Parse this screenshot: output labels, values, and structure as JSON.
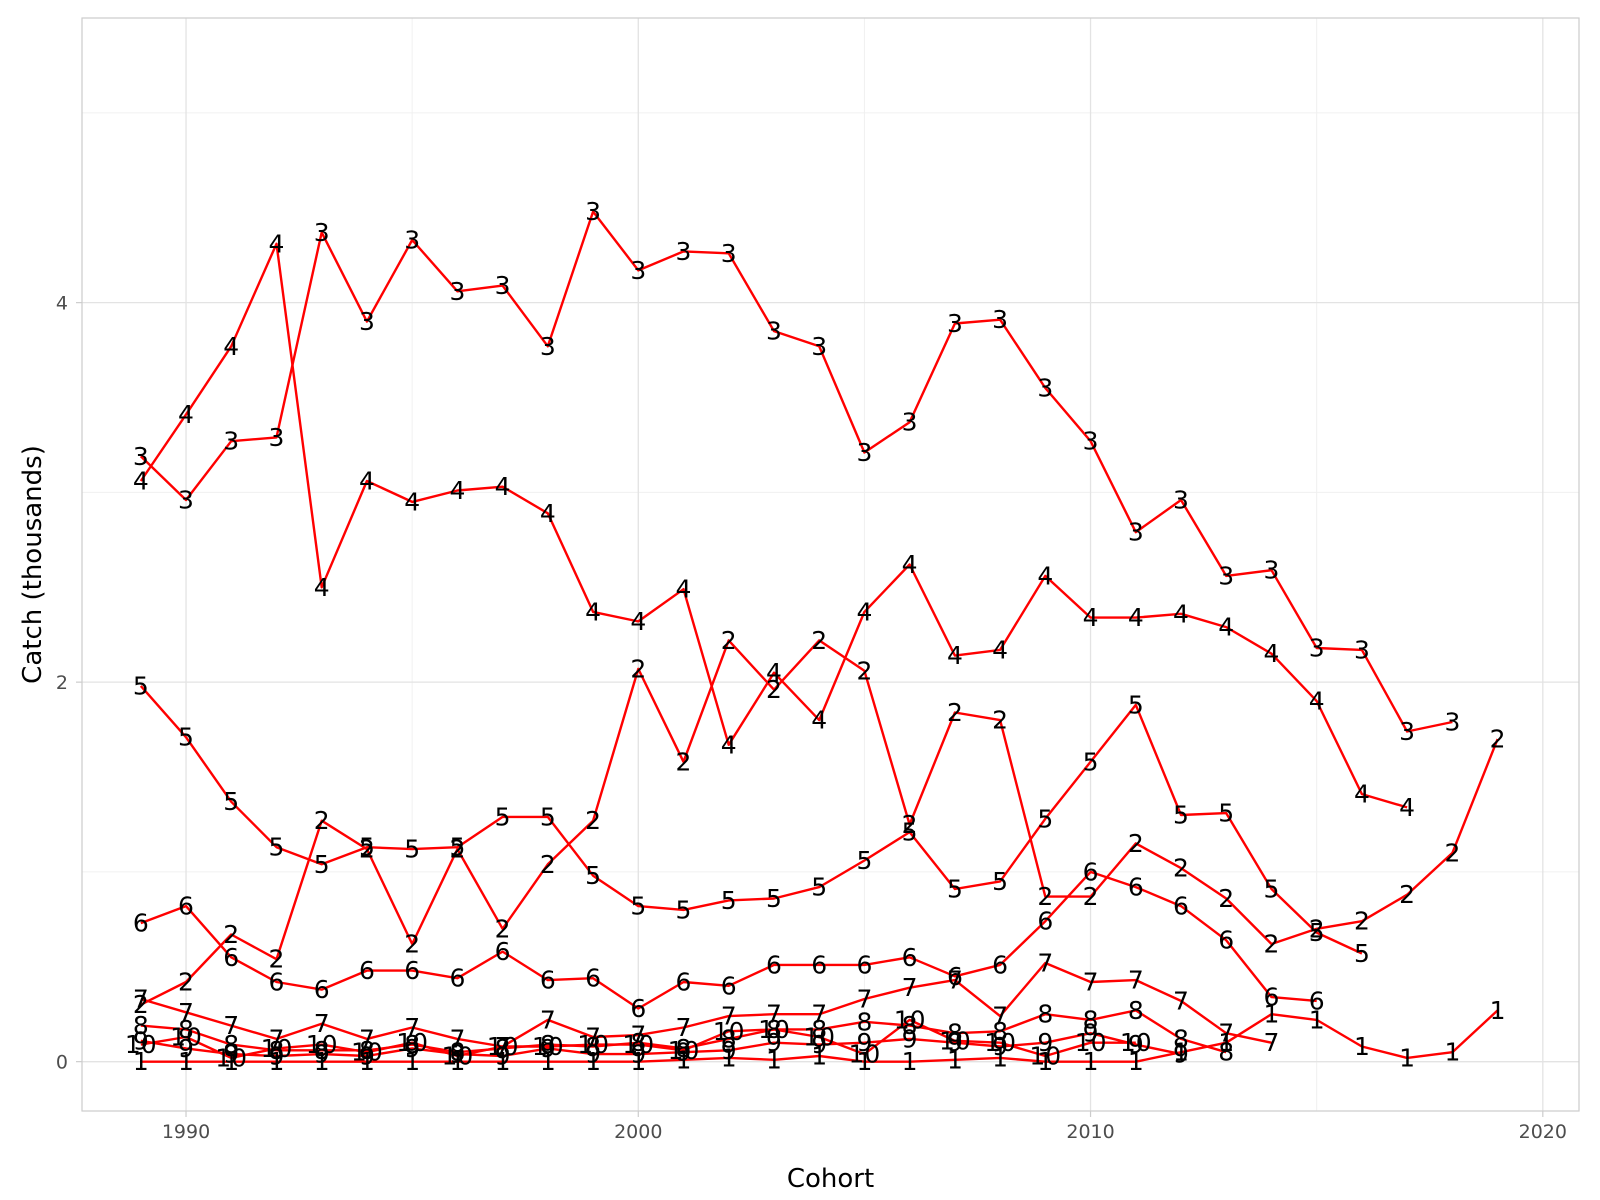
{
  "chart_data": {
    "type": "line",
    "title": "",
    "xlabel": "Cohort",
    "ylabel": "Catch (thousands)",
    "xlim": [
      1987.7,
      2020.8
    ],
    "ylim": [
      -0.26,
      5.5
    ],
    "x_ticks": [
      1990,
      2000,
      2010,
      2020
    ],
    "y_ticks": [
      0,
      2,
      4
    ],
    "grid": true,
    "legend": "none",
    "line_color": "#ff0000",
    "series": [
      {
        "label": "1",
        "x": [
          1989,
          1990,
          1991,
          1992,
          1993,
          1994,
          1995,
          1996,
          1997,
          1998,
          1999,
          2000,
          2001,
          2002,
          2003,
          2004,
          2005,
          2006,
          2007,
          2008,
          2009,
          2010,
          2011,
          2012,
          2013,
          2014,
          2015,
          2016,
          2017,
          2018,
          2019
        ],
        "y": [
          0.0,
          0.0,
          0.0,
          0.0,
          0.0,
          0.0,
          0.0,
          0.0,
          0.0,
          0.0,
          0.0,
          0.0,
          0.01,
          0.02,
          0.01,
          0.03,
          0.0,
          0.0,
          0.01,
          0.02,
          0.0,
          0.0,
          0.0,
          0.05,
          0.1,
          0.25,
          0.22,
          0.08,
          0.02,
          0.05,
          0.27
        ]
      },
      {
        "label": "2",
        "x": [
          1989,
          1990,
          1991,
          1992,
          1993,
          1994,
          1995,
          1996,
          1997,
          1998,
          1999,
          2000,
          2001,
          2002,
          2003,
          2004,
          2005,
          2006,
          2007,
          2008,
          2009,
          2010,
          2011,
          2012,
          2013,
          2014,
          2015,
          2016,
          2017,
          2018,
          2019
        ],
        "y": [
          0.3,
          0.42,
          0.67,
          0.54,
          1.27,
          1.12,
          0.62,
          1.12,
          0.7,
          1.04,
          1.27,
          2.07,
          1.58,
          2.22,
          1.96,
          2.22,
          2.06,
          1.25,
          1.84,
          1.8,
          0.87,
          0.87,
          1.15,
          1.02,
          0.86,
          0.62,
          0.7,
          0.74,
          0.88,
          1.1,
          1.7
        ]
      },
      {
        "label": "3",
        "x": [
          1989,
          1990,
          1991,
          1992,
          1993,
          1994,
          1995,
          1996,
          1997,
          1998,
          1999,
          2000,
          2001,
          2002,
          2003,
          2004,
          2005,
          2006,
          2007,
          2008,
          2009,
          2010,
          2011,
          2012,
          2013,
          2014,
          2015,
          2016,
          2017,
          2018,
          2019
        ],
        "y": [
          3.19,
          2.96,
          3.27,
          3.29,
          4.37,
          3.9,
          4.33,
          4.06,
          4.09,
          3.77,
          4.48,
          4.17,
          4.27,
          4.26,
          3.85,
          3.77,
          3.21,
          3.37,
          3.89,
          3.91,
          3.55,
          3.27,
          2.79,
          2.96,
          2.56,
          2.59,
          2.18,
          2.17,
          1.74,
          1.79,
          null
        ]
      },
      {
        "label": "4",
        "x": [
          1989,
          1990,
          1991,
          1992,
          1993,
          1994,
          1995,
          1996,
          1997,
          1998,
          1999,
          2000,
          2001,
          2002,
          2003,
          2004,
          2005,
          2006,
          2007,
          2008,
          2009,
          2010,
          2011,
          2012,
          2013,
          2014,
          2015,
          2016,
          2017,
          2018,
          2019
        ],
        "y": [
          3.06,
          3.41,
          3.77,
          4.31,
          2.5,
          3.06,
          2.95,
          3.01,
          3.03,
          2.89,
          2.37,
          2.32,
          2.49,
          1.67,
          2.05,
          1.8,
          2.37,
          2.62,
          2.14,
          2.17,
          2.56,
          2.34,
          2.34,
          2.36,
          2.29,
          2.15,
          1.9,
          1.41,
          1.34,
          null,
          null
        ]
      },
      {
        "label": "5",
        "x": [
          1989,
          1990,
          1991,
          1992,
          1993,
          1994,
          1995,
          1996,
          1997,
          1998,
          1999,
          2000,
          2001,
          2002,
          2003,
          2004,
          2005,
          2006,
          2007,
          2008,
          2009,
          2010,
          2011,
          2012,
          2013,
          2014,
          2015,
          2016
        ],
        "y": [
          1.98,
          1.71,
          1.37,
          1.13,
          1.04,
          1.13,
          1.12,
          1.13,
          1.29,
          1.29,
          0.98,
          0.82,
          0.8,
          0.85,
          0.86,
          0.92,
          1.06,
          1.21,
          0.91,
          0.95,
          1.28,
          1.58,
          1.88,
          1.3,
          1.31,
          0.91,
          0.68,
          0.57
        ]
      },
      {
        "label": "6",
        "x": [
          1989,
          1990,
          1991,
          1992,
          1993,
          1994,
          1995,
          1996,
          1997,
          1998,
          1999,
          2000,
          2001,
          2002,
          2003,
          2004,
          2005,
          2006,
          2007,
          2008,
          2009,
          2010,
          2011,
          2012,
          2013,
          2014,
          2015
        ],
        "y": [
          0.73,
          0.82,
          0.55,
          0.42,
          0.38,
          0.48,
          0.48,
          0.44,
          0.58,
          0.43,
          0.44,
          0.28,
          0.42,
          0.4,
          0.51,
          0.51,
          0.51,
          0.55,
          0.45,
          0.51,
          0.74,
          1.0,
          0.92,
          0.82,
          0.64,
          0.34,
          0.32
        ]
      },
      {
        "label": "7",
        "x": [
          1989,
          1990,
          1991,
          1992,
          1993,
          1994,
          1995,
          1996,
          1997,
          1998,
          1999,
          2000,
          2001,
          2002,
          2003,
          2004,
          2005,
          2006,
          2007,
          2008,
          2009,
          2010,
          2011,
          2012,
          2013,
          2014
        ],
        "y": [
          0.33,
          0.26,
          0.19,
          0.12,
          0.2,
          0.12,
          0.18,
          0.12,
          0.08,
          0.22,
          0.13,
          0.14,
          0.18,
          0.24,
          0.25,
          0.25,
          0.33,
          0.39,
          0.43,
          0.24,
          0.52,
          0.42,
          0.43,
          0.32,
          0.15,
          0.1
        ]
      },
      {
        "label": "8",
        "x": [
          1989,
          1990,
          1991,
          1992,
          1993,
          1994,
          1995,
          1996,
          1997,
          1998,
          1999,
          2000,
          2001,
          2002,
          2003,
          2004,
          2005,
          2006,
          2007,
          2008,
          2009,
          2010,
          2011,
          2012,
          2013
        ],
        "y": [
          0.19,
          0.17,
          0.09,
          0.06,
          0.06,
          0.06,
          0.09,
          0.05,
          0.07,
          0.09,
          0.08,
          0.1,
          0.07,
          0.12,
          0.17,
          0.17,
          0.21,
          0.19,
          0.15,
          0.16,
          0.25,
          0.22,
          0.27,
          0.12,
          0.05
        ]
      },
      {
        "label": "9",
        "x": [
          1989,
          1990,
          1991,
          1992,
          1993,
          1994,
          1995,
          1996,
          1997,
          1998,
          1999,
          2000,
          2001,
          2002,
          2003,
          2004,
          2005,
          2006,
          2007,
          2008,
          2009,
          2010,
          2011,
          2012
        ],
        "y": [
          0.11,
          0.07,
          0.04,
          0.03,
          0.04,
          0.03,
          0.07,
          0.04,
          0.03,
          0.07,
          0.04,
          0.04,
          0.05,
          0.06,
          0.1,
          0.09,
          0.1,
          0.12,
          0.1,
          0.08,
          0.1,
          0.15,
          0.09,
          0.04
        ]
      },
      {
        "label": "10",
        "x": [
          1989,
          1990,
          1991,
          1992,
          1993,
          1994,
          1995,
          1996,
          1997,
          1998,
          1999,
          2000,
          2001,
          2002,
          2003,
          2004,
          2005,
          2006,
          2007,
          2008,
          2009,
          2010,
          2011
        ],
        "y": [
          0.09,
          0.13,
          0.02,
          0.07,
          0.09,
          0.05,
          0.1,
          0.03,
          0.08,
          0.08,
          0.09,
          0.09,
          0.06,
          0.16,
          0.17,
          0.13,
          0.04,
          0.22,
          0.11,
          0.1,
          0.03,
          0.1,
          0.1
        ]
      }
    ]
  }
}
